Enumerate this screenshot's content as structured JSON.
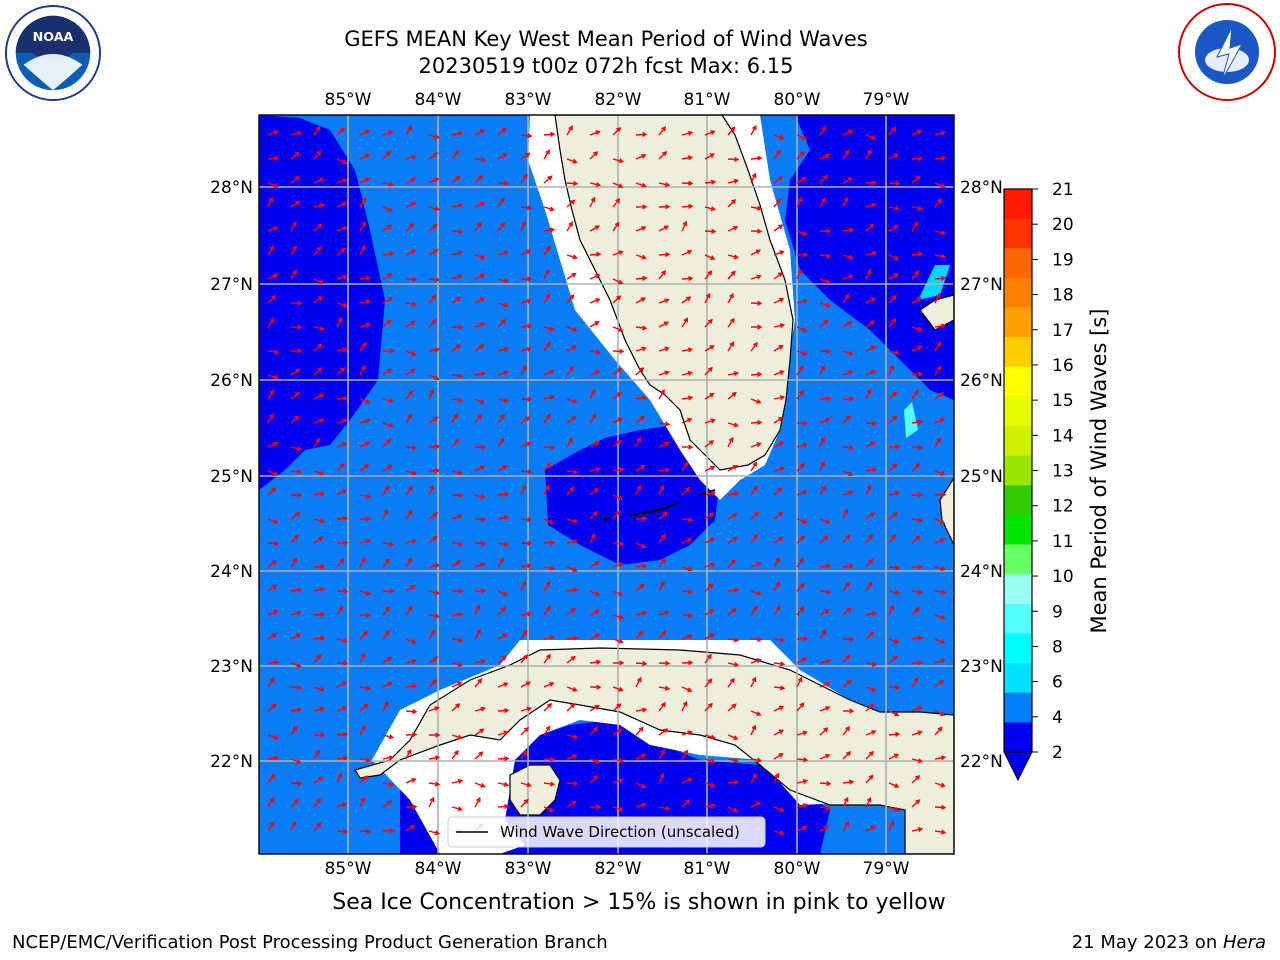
{
  "title": {
    "line1": "GEFS MEAN Key West Mean Period of Wind Waves",
    "line2": "20230519 t00z 072h fcst   Max: 6.15"
  },
  "logos": {
    "left": "noaa-logo",
    "right": "nws-logo"
  },
  "map": {
    "lon_ticks": [
      "85°W",
      "84°W",
      "83°W",
      "82°W",
      "81°W",
      "80°W",
      "79°W"
    ],
    "lat_ticks": [
      "28°N",
      "27°N",
      "26°N",
      "25°N",
      "24°N",
      "23°N",
      "22°N"
    ],
    "legend_label": "Wind Wave Direction (unscaled)",
    "colors": {
      "ocean_light": "#0a7cf5",
      "ocean_dark": "#0000f0",
      "land": "#eeeedd",
      "arrows": "#ff0000",
      "grid": "#b0b0b0"
    }
  },
  "colorbar": {
    "label": "Mean Period of Wind Waves [s]",
    "ticks": [
      "21",
      "20",
      "19",
      "18",
      "17",
      "16",
      "15",
      "14",
      "13",
      "12",
      "11",
      "10",
      "9",
      "8",
      "6",
      "4",
      "2"
    ],
    "colors": [
      "#ff1a00",
      "#ff3300",
      "#ff6600",
      "#ff8000",
      "#ffa000",
      "#ffcc00",
      "#ffff00",
      "#e6ff00",
      "#ccf000",
      "#99e600",
      "#33cc00",
      "#00e600",
      "#66ff66",
      "#99ffee",
      "#55ffff",
      "#00ffff",
      "#00e0ff",
      "#0080ff",
      "#0000ee"
    ]
  },
  "subcaption": "Sea Ice Concentration > 15% is shown in pink to yellow",
  "footer": {
    "left": "NCEP/EMC/Verification Post Processing Product Generation Branch",
    "right_date": "21 May 2023 on ",
    "right_host": "Hera"
  }
}
